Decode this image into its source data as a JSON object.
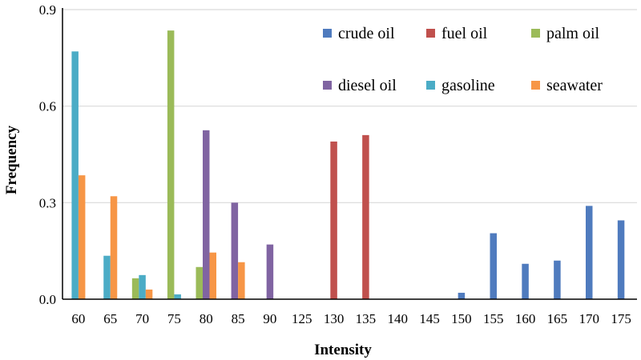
{
  "chart_data": {
    "type": "bar",
    "xlabel": "Intensity",
    "ylabel": "Frequency",
    "categories": [
      "60",
      "65",
      "70",
      "75",
      "80",
      "85",
      "90",
      "125",
      "130",
      "135",
      "140",
      "145",
      "150",
      "155",
      "160",
      "165",
      "170",
      "175"
    ],
    "ylim": [
      0,
      0.9
    ],
    "yticks": [
      "0.0",
      "0.3",
      "0.6",
      "0.9"
    ],
    "grid": true,
    "legend_position": "top-right",
    "series": [
      {
        "name": "crude oil",
        "color": "#4f7bbe",
        "values": [
          0,
          0,
          0,
          0,
          0,
          0,
          0,
          0,
          0,
          0,
          0,
          0,
          0.02,
          0.205,
          0.11,
          0.12,
          0.29,
          0.245
        ]
      },
      {
        "name": "fuel oil",
        "color": "#c0504d",
        "values": [
          0,
          0,
          0,
          0,
          0,
          0,
          0,
          0,
          0.49,
          0.51,
          0,
          0,
          0,
          0,
          0,
          0,
          0,
          0
        ]
      },
      {
        "name": "palm oil",
        "color": "#9bbb59",
        "values": [
          0,
          0,
          0.065,
          0.835,
          0.1,
          0,
          0,
          0,
          0,
          0,
          0,
          0,
          0,
          0,
          0,
          0,
          0,
          0
        ]
      },
      {
        "name": "diesel oil",
        "color": "#8064a2",
        "values": [
          0,
          0,
          0,
          0,
          0.525,
          0.3,
          0.17,
          0,
          0,
          0,
          0,
          0,
          0,
          0,
          0,
          0,
          0,
          0
        ]
      },
      {
        "name": "gasoline",
        "color": "#4bacc6",
        "values": [
          0.77,
          0.135,
          0.075,
          0.015,
          0,
          0,
          0,
          0,
          0,
          0,
          0,
          0,
          0,
          0,
          0,
          0,
          0,
          0
        ]
      },
      {
        "name": "seawater",
        "color": "#f79646",
        "values": [
          0.385,
          0.32,
          0.03,
          0,
          0.145,
          0.115,
          0,
          0,
          0,
          0,
          0,
          0,
          0,
          0,
          0,
          0,
          0,
          0
        ]
      }
    ]
  }
}
